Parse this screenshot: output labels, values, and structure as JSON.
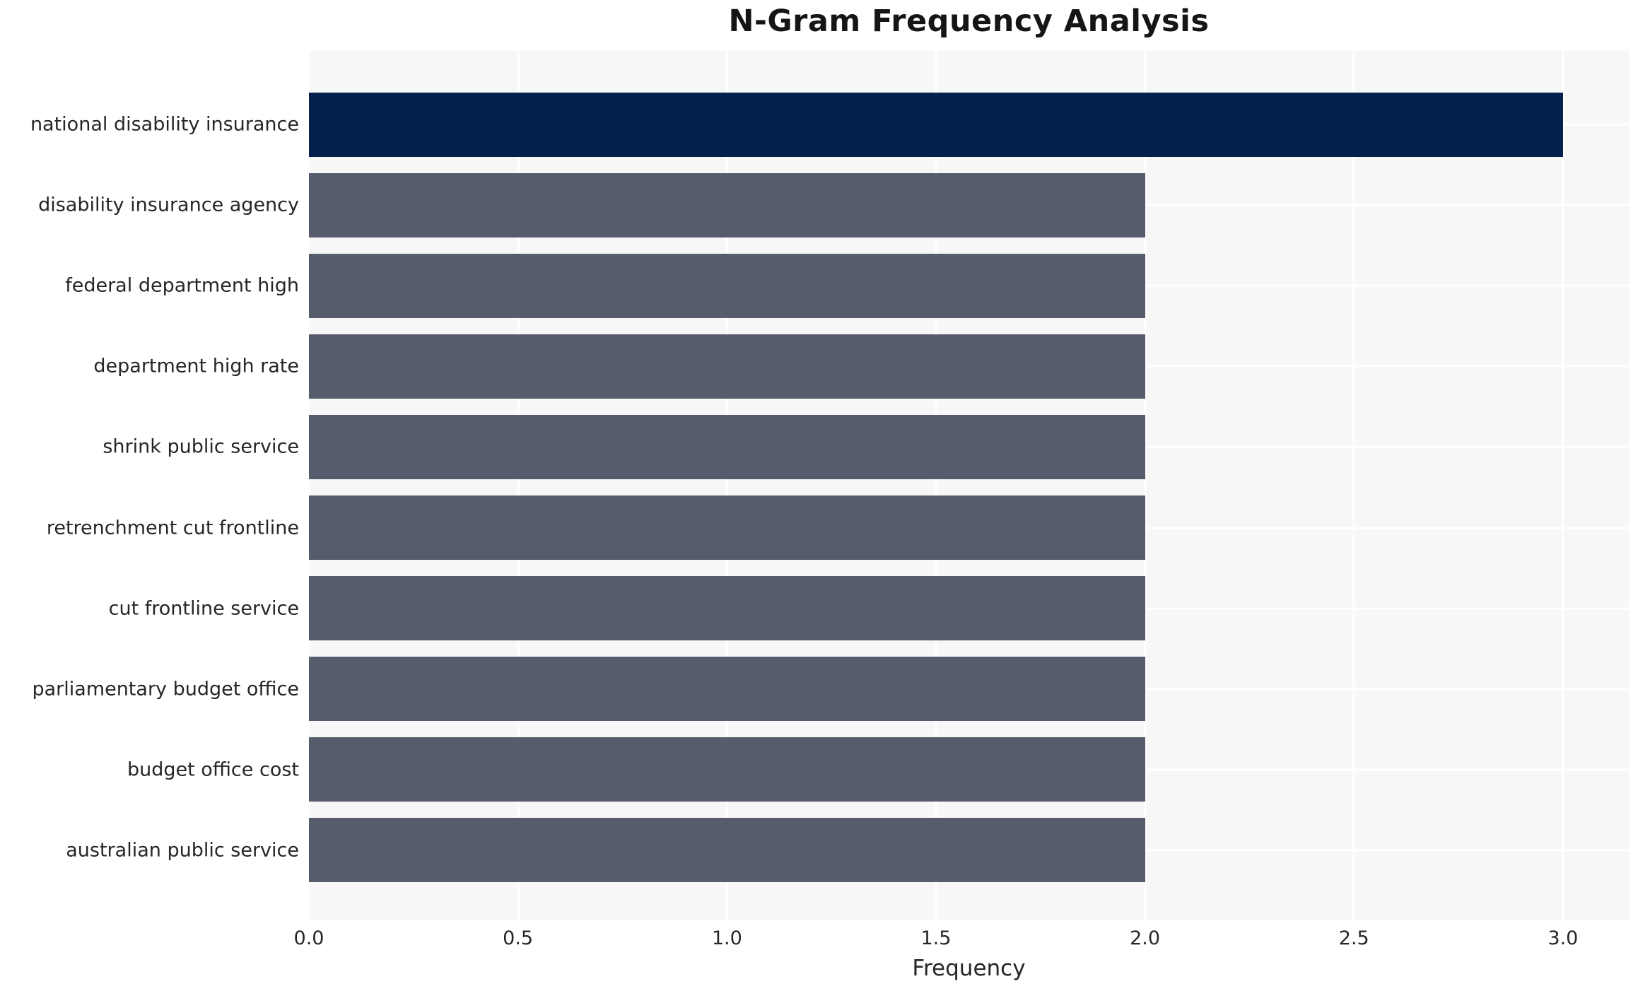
{
  "chart_data": {
    "type": "bar",
    "orientation": "horizontal",
    "title": "N-Gram Frequency Analysis",
    "xlabel": "Frequency",
    "ylabel": "",
    "categories": [
      "national disability insurance",
      "disability insurance agency",
      "federal department high",
      "department high rate",
      "shrink public service",
      "retrenchment cut frontline",
      "cut frontline service",
      "parliamentary budget office",
      "budget office cost",
      "australian public service"
    ],
    "values": [
      3,
      2,
      2,
      2,
      2,
      2,
      2,
      2,
      2,
      2
    ],
    "x_ticks": [
      0.0,
      0.5,
      1.0,
      1.5,
      2.0,
      2.5,
      3.0
    ],
    "x_tick_labels": [
      "0.0",
      "0.5",
      "1.0",
      "1.5",
      "2.0",
      "2.5",
      "3.0"
    ],
    "xlim": [
      0,
      3.16
    ],
    "grid": true,
    "legend": false,
    "colors": {
      "bar_highlight": "#02224c",
      "bar_default": "#565c6b",
      "plot_background": "#f7f7f8",
      "gridline": "#ffffff",
      "tick_text": "#262626",
      "title_text": "#151515"
    }
  }
}
